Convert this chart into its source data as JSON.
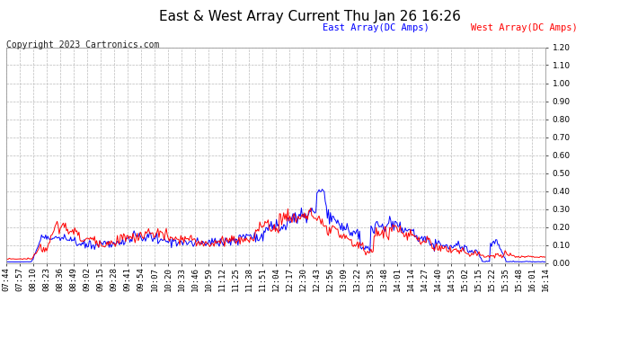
{
  "title": "East & West Array Current Thu Jan 26 16:26",
  "copyright": "Copyright 2023 Cartronics.com",
  "legend_east": "East Array(DC Amps)",
  "legend_west": "West Array(DC Amps)",
  "east_color": "#0000ff",
  "west_color": "#ff0000",
  "bg_color": "#ffffff",
  "plot_bg_color": "#ffffff",
  "grid_color": "#bbbbbb",
  "ylim": [
    0.0,
    1.2
  ],
  "yticks": [
    0.0,
    0.1,
    0.2,
    0.3,
    0.4,
    0.5,
    0.6,
    0.7,
    0.8,
    0.9,
    1.0,
    1.1,
    1.2
  ],
  "xtick_labels": [
    "07:44",
    "07:57",
    "08:10",
    "08:23",
    "08:36",
    "08:49",
    "09:02",
    "09:15",
    "09:28",
    "09:41",
    "09:54",
    "10:07",
    "10:20",
    "10:33",
    "10:46",
    "10:59",
    "11:12",
    "11:25",
    "11:38",
    "11:51",
    "12:04",
    "12:17",
    "12:30",
    "12:43",
    "12:56",
    "13:09",
    "13:22",
    "13:35",
    "13:48",
    "14:01",
    "14:14",
    "14:27",
    "14:40",
    "14:53",
    "15:02",
    "15:15",
    "15:22",
    "15:35",
    "15:48",
    "16:01",
    "16:14"
  ],
  "title_fontsize": 11,
  "axis_fontsize": 6.5,
  "legend_fontsize": 7.5,
  "copyright_fontsize": 7,
  "line_width": 0.7
}
